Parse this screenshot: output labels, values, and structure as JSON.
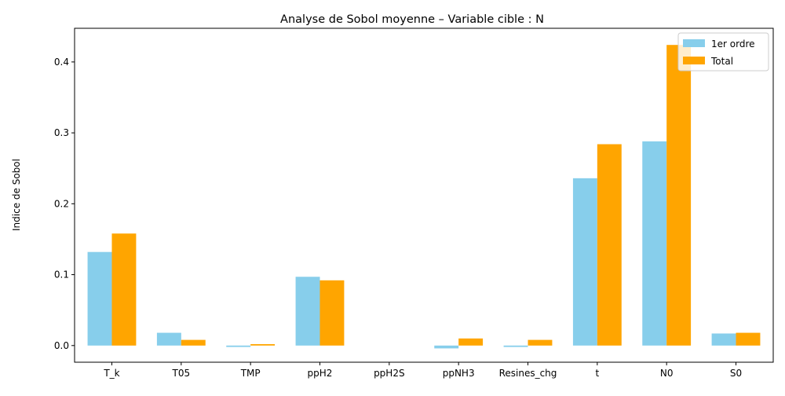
{
  "chart_data": {
    "type": "bar",
    "title": "Analyse de Sobol moyenne – Variable cible : N",
    "xlabel": "",
    "ylabel": "Indice de Sobol",
    "categories": [
      "T_k",
      "T05",
      "TMP",
      "ppH2",
      "ppH2S",
      "ppNH3",
      "Resines_chg",
      "t",
      "N0",
      "S0"
    ],
    "series": [
      {
        "name": "1er ordre",
        "color": "#87CEEB",
        "values": [
          0.132,
          0.018,
          -0.002,
          0.097,
          0.0,
          -0.004,
          -0.002,
          0.236,
          0.288,
          0.017
        ]
      },
      {
        "name": "Total",
        "color": "#FFA500",
        "values": [
          0.158,
          0.008,
          0.002,
          0.092,
          0.0,
          0.01,
          0.008,
          0.284,
          0.424,
          0.018
        ]
      }
    ],
    "ylim": [
      -0.0235,
      0.4475
    ],
    "yticks": [
      0.0,
      0.1,
      0.2,
      0.3,
      0.4
    ],
    "ytick_labels": [
      "0.0",
      "0.1",
      "0.2",
      "0.3",
      "0.4"
    ],
    "grid": false,
    "legend_position": "upper-right"
  }
}
